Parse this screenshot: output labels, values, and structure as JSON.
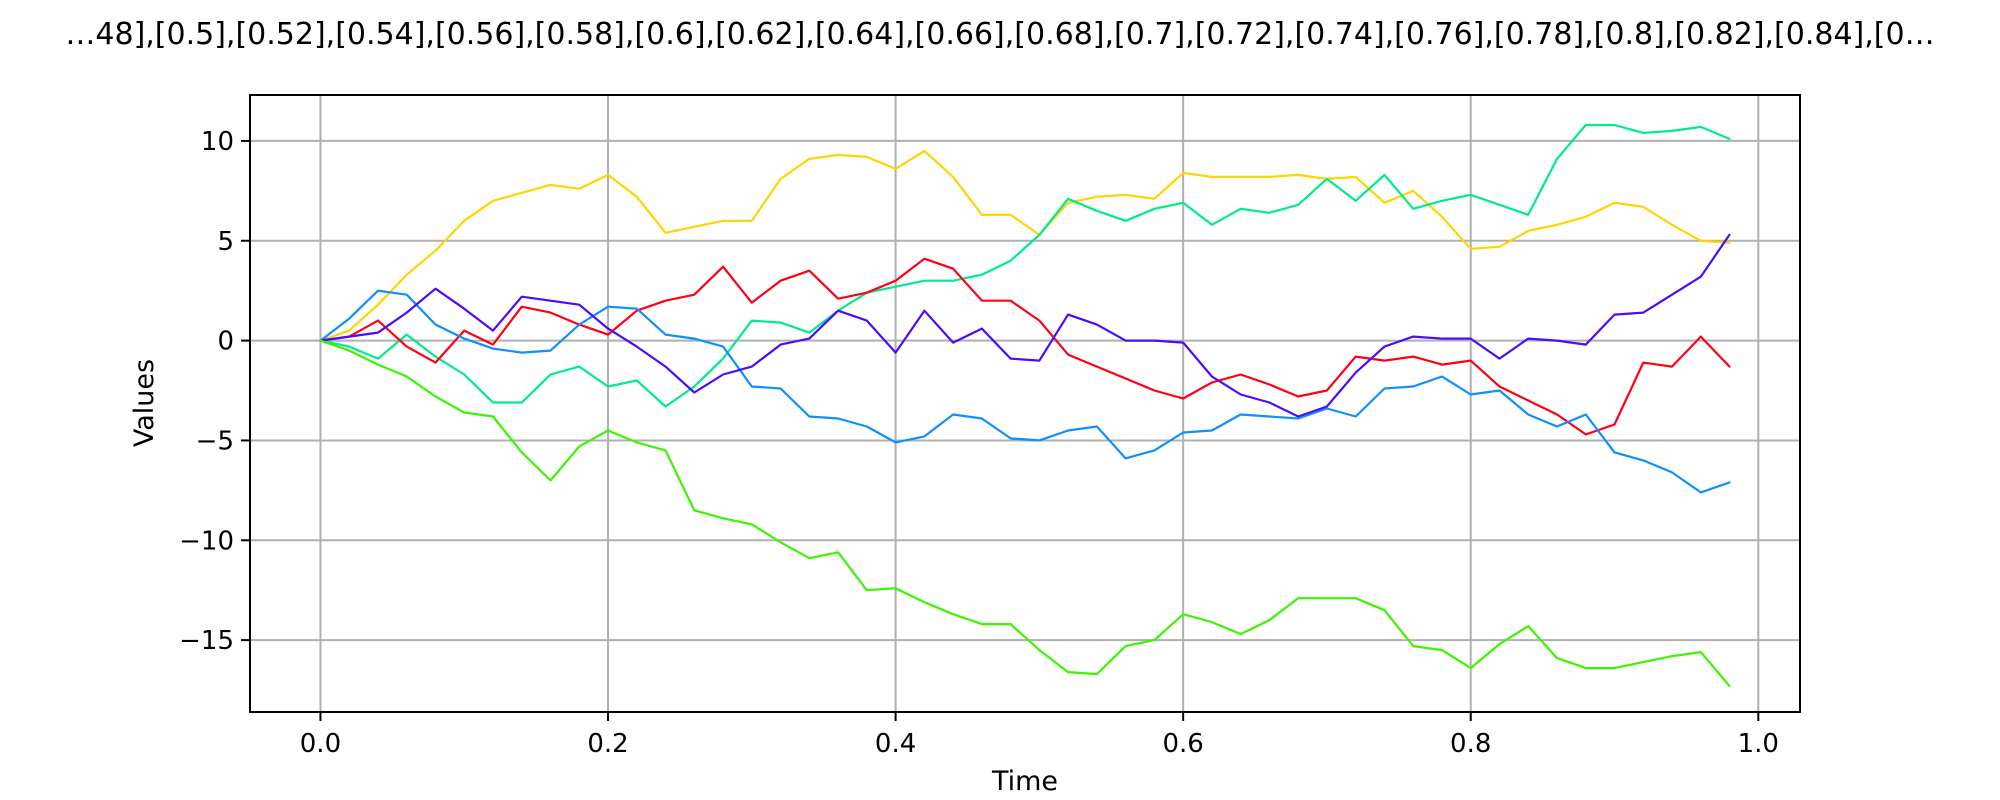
{
  "chart_data": {
    "type": "line",
    "title": "…48],[0.5],[0.52],[0.54],[0.56],[0.58],[0.6],[0.62],[0.64],[0.66],[0.68],[0.7],[0.72],[0.74],[0.76],[0.78],[0.8],[0.82],[0.84],[0…",
    "xlabel": "Time",
    "ylabel": "Values",
    "xlim": [
      -0.049,
      1.029
    ],
    "ylim": [
      -18.6,
      12.3
    ],
    "xticks": [
      0.0,
      0.2,
      0.4,
      0.6,
      0.8,
      1.0
    ],
    "xtick_labels": [
      "0.0",
      "0.2",
      "0.4",
      "0.6",
      "0.8",
      "1.0"
    ],
    "yticks": [
      10,
      5,
      0,
      -5,
      -10,
      -15
    ],
    "ytick_labels": [
      "10",
      "5",
      "0",
      "−5",
      "−10",
      "−15"
    ],
    "grid": true,
    "x": [
      0.0,
      0.02,
      0.04,
      0.06,
      0.08,
      0.1,
      0.12,
      0.14,
      0.16,
      0.18,
      0.2,
      0.22,
      0.24,
      0.26,
      0.28,
      0.3,
      0.32,
      0.34,
      0.36,
      0.38,
      0.4,
      0.42,
      0.44,
      0.46,
      0.48,
      0.5,
      0.52,
      0.54,
      0.56,
      0.58,
      0.6,
      0.62,
      0.64,
      0.66,
      0.68,
      0.7,
      0.72,
      0.74,
      0.76,
      0.78,
      0.8,
      0.82,
      0.84,
      0.86,
      0.88,
      0.9,
      0.92,
      0.94,
      0.96,
      0.98
    ],
    "series": [
      {
        "color": "#ffd500",
        "values": [
          0,
          0.5,
          1.8,
          3.3,
          4.5,
          6.0,
          7.0,
          7.4,
          7.8,
          7.6,
          8.3,
          7.2,
          5.4,
          5.7,
          6.0,
          6.0,
          8.1,
          9.1,
          9.3,
          9.2,
          8.6,
          9.5,
          8.2,
          6.3,
          6.3,
          5.3,
          6.9,
          7.2,
          7.3,
          7.1,
          8.4,
          8.2,
          8.2,
          8.2,
          8.3,
          8.1,
          8.2,
          6.9,
          7.5,
          6.2,
          4.6,
          4.7,
          5.5,
          5.8,
          6.2,
          6.9,
          6.7,
          5.8,
          5.0,
          4.9
        ]
      },
      {
        "color": "#00ea8e",
        "values": [
          0,
          -0.3,
          -0.9,
          0.3,
          -0.8,
          -1.7,
          -3.1,
          -3.1,
          -1.7,
          -1.3,
          -2.3,
          -2.0,
          -3.3,
          -2.3,
          -0.9,
          1.0,
          0.9,
          0.4,
          1.5,
          2.4,
          2.7,
          3.0,
          3.0,
          3.3,
          4.0,
          5.3,
          7.1,
          6.5,
          6.0,
          6.6,
          6.9,
          5.8,
          6.6,
          6.4,
          6.8,
          8.1,
          7.0,
          8.3,
          6.6,
          7.0,
          7.3,
          6.8,
          6.3,
          9.1,
          10.8,
          10.8,
          10.4,
          10.5,
          10.7,
          10.1
        ]
      },
      {
        "color": "#ff0015",
        "values": [
          0,
          0.2,
          1.0,
          -0.3,
          -1.1,
          0.5,
          -0.2,
          1.7,
          1.4,
          0.8,
          0.3,
          1.5,
          2.0,
          2.3,
          3.7,
          1.9,
          3.0,
          3.5,
          2.1,
          2.4,
          3.0,
          4.1,
          3.6,
          2.0,
          2.0,
          1.0,
          -0.7,
          -1.3,
          -1.9,
          -2.5,
          -2.9,
          -2.1,
          -1.7,
          -2.2,
          -2.8,
          -2.5,
          -0.8,
          -1.0,
          -0.8,
          -1.2,
          -1.0,
          -2.3,
          -3.0,
          -3.7,
          -4.7,
          -4.2,
          -1.1,
          -1.3,
          0.2,
          -1.3
        ]
      },
      {
        "color": "#108ffd",
        "values": [
          0,
          1.1,
          2.5,
          2.3,
          0.8,
          0.1,
          -0.4,
          -0.6,
          -0.5,
          0.8,
          1.7,
          1.6,
          0.3,
          0.1,
          -0.3,
          -2.3,
          -2.4,
          -3.8,
          -3.9,
          -4.3,
          -5.1,
          -4.8,
          -3.7,
          -3.9,
          -4.9,
          -5.0,
          -4.5,
          -4.3,
          -5.9,
          -5.5,
          -4.6,
          -4.5,
          -3.7,
          -3.8,
          -3.9,
          -3.4,
          -3.8,
          -2.4,
          -2.3,
          -1.8,
          -2.7,
          -2.5,
          -3.7,
          -4.3,
          -3.7,
          -5.6,
          -6.0,
          -6.6,
          -7.6,
          -7.1
        ]
      },
      {
        "color": "#4c0aff",
        "values": [
          0,
          0.2,
          0.4,
          1.4,
          2.6,
          1.6,
          0.5,
          2.2,
          2.0,
          1.8,
          0.6,
          -0.3,
          -1.3,
          -2.6,
          -1.7,
          -1.3,
          -0.2,
          0.1,
          1.5,
          1.0,
          -0.6,
          1.5,
          -0.1,
          0.6,
          -0.9,
          -1.0,
          1.3,
          0.8,
          0.0,
          0.0,
          -0.1,
          -1.8,
          -2.7,
          -3.1,
          -3.8,
          -3.3,
          -1.6,
          -0.3,
          0.2,
          0.1,
          0.1,
          -0.9,
          0.1,
          0.0,
          -0.2,
          1.3,
          1.4,
          2.3,
          3.2,
          5.3
        ]
      },
      {
        "color": "#3cf500",
        "values": [
          0,
          -0.5,
          -1.2,
          -1.8,
          -2.8,
          -3.6,
          -3.8,
          -5.6,
          -7.0,
          -5.3,
          -4.5,
          -5.1,
          -5.5,
          -8.5,
          -8.9,
          -9.2,
          -10.1,
          -10.9,
          -10.6,
          -12.5,
          -12.4,
          -13.1,
          -13.7,
          -14.2,
          -14.2,
          -15.5,
          -16.6,
          -16.7,
          -15.3,
          -15.0,
          -13.7,
          -14.1,
          -14.7,
          -14.0,
          -12.9,
          -12.9,
          -12.9,
          -13.5,
          -15.3,
          -15.5,
          -16.4,
          -15.2,
          -14.3,
          -15.9,
          -16.4,
          -16.4,
          -16.1,
          -15.8,
          -15.6,
          -17.3
        ]
      }
    ]
  }
}
